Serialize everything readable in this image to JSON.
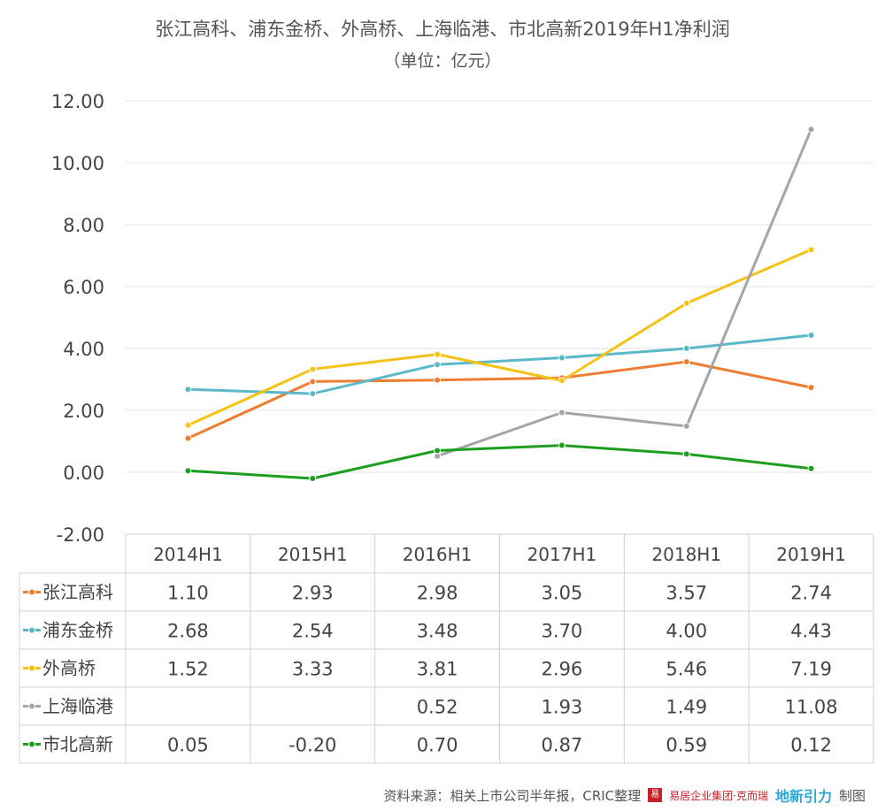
{
  "chart_data": {
    "type": "line",
    "title": "张江高科、浦东金桥、外高桥、上海临港、市北高新2019年H1净利润",
    "subtitle": "（单位：亿元）",
    "categories": [
      "2014H1",
      "2015H1",
      "2016H1",
      "2017H1",
      "2018H1",
      "2019H1"
    ],
    "ylim": [
      -2,
      12
    ],
    "yticks": [
      "12.00",
      "10.00",
      "8.00",
      "6.00",
      "4.00",
      "2.00",
      "0.00",
      "-2.00"
    ],
    "grid": true,
    "legend": "table-below",
    "series": [
      {
        "name": "张江高科",
        "color": "#ed7d31",
        "values": [
          1.1,
          2.93,
          2.98,
          3.05,
          3.57,
          2.74
        ],
        "labels": [
          "1.10",
          "2.93",
          "2.98",
          "3.05",
          "3.57",
          "2.74"
        ]
      },
      {
        "name": "浦东金桥",
        "color": "#5bb8c9",
        "values": [
          2.68,
          2.54,
          3.48,
          3.7,
          4.0,
          4.43
        ],
        "labels": [
          "2.68",
          "2.54",
          "3.48",
          "3.70",
          "4.00",
          "4.43"
        ]
      },
      {
        "name": "外高桥",
        "color": "#f5c216",
        "values": [
          1.52,
          3.33,
          3.81,
          2.96,
          5.46,
          7.19
        ],
        "labels": [
          "1.52",
          "3.33",
          "3.81",
          "2.96",
          "5.46",
          "7.19"
        ]
      },
      {
        "name": "上海临港",
        "color": "#a5a5a5",
        "values": [
          null,
          null,
          0.52,
          1.93,
          1.49,
          11.08
        ],
        "labels": [
          "",
          "",
          "0.52",
          "1.93",
          "1.49",
          "11.08"
        ]
      },
      {
        "name": "市北高新",
        "color": "#1e9e1e",
        "values": [
          0.05,
          -0.2,
          0.7,
          0.87,
          0.59,
          0.12
        ],
        "labels": [
          "0.05",
          "-0.20",
          "0.70",
          "0.87",
          "0.59",
          "0.12"
        ]
      }
    ]
  },
  "footer": {
    "source": "资料来源：相关上市公司半年报，CRIC整理",
    "logo_text": "易居企业集团·克而瑞",
    "logo_mark": "地新引力",
    "made_by": "制图"
  }
}
